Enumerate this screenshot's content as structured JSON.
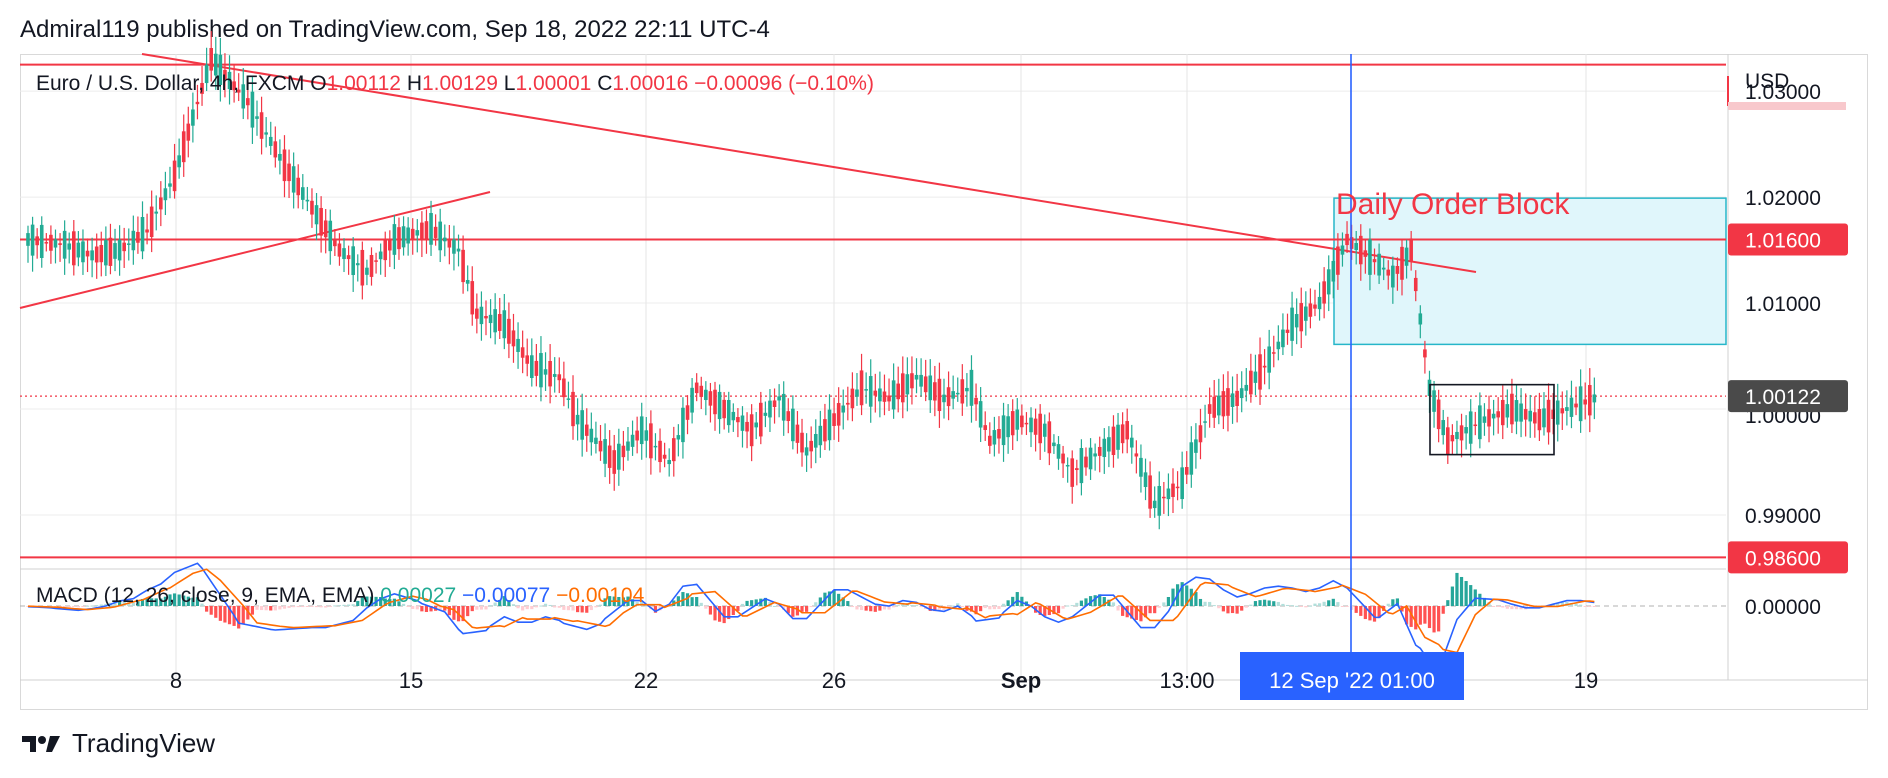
{
  "header": {
    "text": "Admiral119 published on TradingView.com, Sep 18, 2022 22:11 UTC-4"
  },
  "legend": {
    "symbol": "Euro / U.S. Dollar, 4h, FXCM",
    "o_label": "O",
    "o_value": "1.00112",
    "h_label": "H",
    "h_value": "1.00129",
    "l_label": "L",
    "l_value": "1.00001",
    "c_label": "C",
    "c_value": "1.00016",
    "change": "−0.00096 (−0.10%)"
  },
  "macd_legend": {
    "name": "MACD (12, 26, close, 9, EMA, EMA)",
    "hist": "0.00027",
    "macd": "−0.00077",
    "signal": "−0.00104"
  },
  "annotation": {
    "order_block": "Daily Order Block"
  },
  "price_axis": {
    "currency": "USD",
    "ticks": [
      "1.03000",
      "1.02000",
      "1.01000",
      "0.99000"
    ],
    "macd_tick": "0.00000",
    "badges": [
      {
        "text": "1.01600",
        "color": "#f23645"
      },
      {
        "text": "1.00122",
        "color": "#4a4a4a"
      },
      {
        "text": "0.98600",
        "color": "#f23645"
      }
    ],
    "hidden_tick": "1.00000"
  },
  "time_axis": {
    "ticks": [
      "8",
      "15",
      "22",
      "26",
      "Sep",
      "13:00",
      "19"
    ],
    "crosshair_label": "12 Sep '22   01:00"
  },
  "footer": {
    "brand": "TradingView"
  },
  "colors": {
    "up": "#22ab94",
    "down": "#f23645",
    "line": "#f23645",
    "crosshair": "#2962ff",
    "order_block_fill": "#e0f6fb",
    "order_block_border": "#26b6c9",
    "macd_line": "#2962ff",
    "signal_line": "#ff6d00"
  },
  "chart_data": {
    "type": "candlestick",
    "title": "Euro / U.S. Dollar, 4h, FXCM",
    "ylim": [
      0.985,
      1.0335
    ],
    "levels": [
      1.0325,
      1.016,
      1.00122,
      0.986
    ],
    "order_block": {
      "top": 1.0199,
      "bottom": 1.0061
    },
    "consolidation_box": {
      "top": 1.0023,
      "bottom": 0.9957
    },
    "anchors": [
      [
        0,
        1.016
      ],
      [
        8,
        1.0155
      ],
      [
        14,
        1.0145
      ],
      [
        20,
        1.015
      ],
      [
        26,
        1.0168
      ],
      [
        32,
        1.022
      ],
      [
        40,
        1.033
      ],
      [
        48,
        1.029
      ],
      [
        56,
        1.023
      ],
      [
        62,
        1.019
      ],
      [
        68,
        1.015
      ],
      [
        74,
        1.013
      ],
      [
        80,
        1.016
      ],
      [
        88,
        1.017
      ],
      [
        94,
        1.015
      ],
      [
        98,
        1.009
      ],
      [
        104,
        1.008
      ],
      [
        110,
        1.004
      ],
      [
        116,
        1.003
      ],
      [
        120,
        0.999
      ],
      [
        128,
        0.995
      ],
      [
        134,
        0.998
      ],
      [
        140,
        0.995
      ],
      [
        146,
        1.002
      ],
      [
        152,
        1.0
      ],
      [
        158,
        0.998
      ],
      [
        164,
        1.001
      ],
      [
        170,
        0.996
      ],
      [
        176,
        0.999
      ],
      [
        182,
        1.002
      ],
      [
        188,
        1.001
      ],
      [
        194,
        1.003
      ],
      [
        200,
        1.001
      ],
      [
        206,
        1.002
      ],
      [
        210,
        0.997
      ],
      [
        216,
        0.999
      ],
      [
        222,
        0.998
      ],
      [
        228,
        0.994
      ],
      [
        234,
        0.996
      ],
      [
        240,
        0.998
      ],
      [
        246,
        0.991
      ],
      [
        252,
        0.993
      ],
      [
        258,
        1.0
      ],
      [
        264,
        1.001
      ],
      [
        270,
        1.004
      ],
      [
        276,
        1.008
      ],
      [
        282,
        1.01
      ],
      [
        288,
        1.016
      ],
      [
        294,
        1.014
      ],
      [
        298,
        1.0125
      ],
      [
        302,
        1.015
      ],
      [
        306,
        1.002
      ],
      [
        310,
        0.997
      ],
      [
        318,
        0.999
      ],
      [
        324,
        1.0
      ],
      [
        330,
        0.999
      ],
      [
        336,
        1.0
      ],
      [
        342,
        1.001
      ]
    ],
    "macd_ylim": [
      -0.006,
      0.004
    ]
  }
}
